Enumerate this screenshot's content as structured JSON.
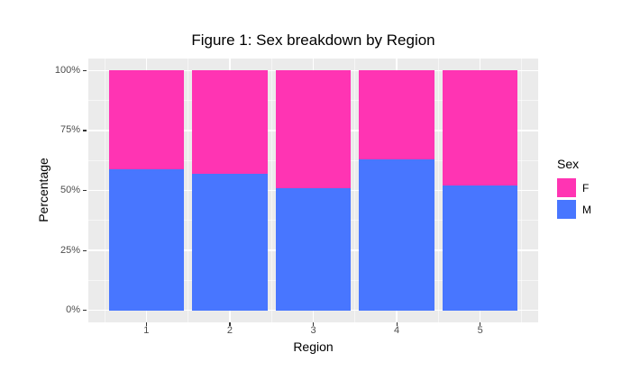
{
  "chart_data": {
    "type": "bar",
    "stacked": true,
    "title": "Figure 1: Sex breakdown by Region",
    "xlabel": "Region",
    "ylabel": "Percentage",
    "categories": [
      "1",
      "2",
      "3",
      "4",
      "5"
    ],
    "series": [
      {
        "name": "F",
        "color": "#FF34B3",
        "values": [
          41,
          43,
          49,
          37,
          48
        ]
      },
      {
        "name": "M",
        "color": "#4876FF",
        "values": [
          59,
          57,
          51,
          63,
          52
        ]
      }
    ],
    "y_ticks": [
      {
        "label": "0%",
        "value": 0
      },
      {
        "label": "25%",
        "value": 25
      },
      {
        "label": "50%",
        "value": 50
      },
      {
        "label": "75%",
        "value": 75
      },
      {
        "label": "100%",
        "value": 100
      }
    ],
    "ylim": [
      0,
      100
    ],
    "bar_width_fraction": 0.9,
    "legend": {
      "title": "Sex",
      "position": "right"
    },
    "grid": true,
    "panel_bg": "#EBEBEB",
    "grid_color": "#FFFFFF"
  }
}
